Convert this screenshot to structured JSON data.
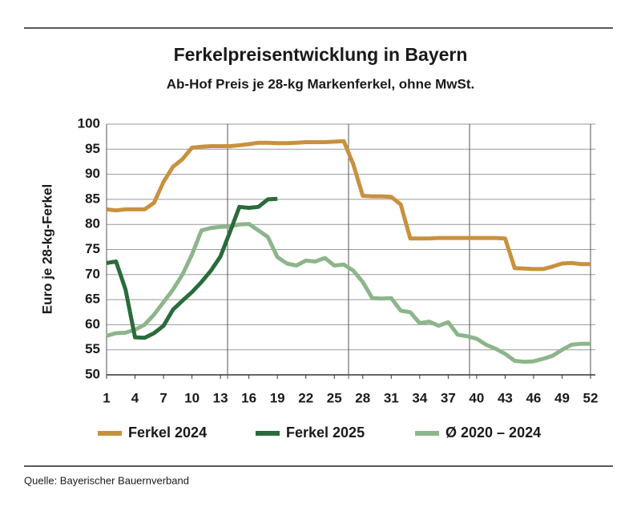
{
  "chart_data": {
    "type": "line",
    "title": "Ferkelpreisentwicklung in Bayern",
    "subtitle": "Ab-Hof Preis je 28-kg Markenferkel, ohne MwSt.",
    "y_label": "Euro je 28-kg-Ferkel",
    "source": "Quelle: Bayerischer Bauernverband",
    "x": [
      1,
      2,
      3,
      4,
      5,
      6,
      7,
      8,
      9,
      10,
      11,
      12,
      13,
      14,
      15,
      16,
      17,
      18,
      19,
      20,
      21,
      22,
      23,
      24,
      25,
      26,
      27,
      28,
      29,
      30,
      31,
      32,
      33,
      34,
      35,
      36,
      37,
      38,
      39,
      40,
      41,
      42,
      43,
      44,
      45,
      46,
      47,
      48,
      49,
      50,
      51,
      52
    ],
    "xlim": [
      1,
      52
    ],
    "xticks": [
      1,
      4,
      7,
      10,
      13,
      16,
      19,
      22,
      25,
      28,
      31,
      34,
      37,
      40,
      43,
      46,
      49,
      52
    ],
    "x_gridlines": [
      1,
      13.75,
      26.5,
      39.25,
      52
    ],
    "ylim": [
      50,
      100
    ],
    "yticks": [
      50,
      55,
      60,
      65,
      70,
      75,
      80,
      85,
      90,
      95,
      100
    ],
    "grid": true,
    "legend": "bottom",
    "series": [
      {
        "name": "Ferkel 2024",
        "color": "#c8913f",
        "values": [
          83,
          82.8,
          83,
          83,
          83,
          84.3,
          88.5,
          91.5,
          93,
          95.3,
          95.5,
          95.6,
          95.6,
          95.6,
          95.8,
          96,
          96.3,
          96.3,
          96.2,
          96.2,
          96.3,
          96.4,
          96.4,
          96.4,
          96.5,
          96.6,
          92,
          85.7,
          85.6,
          85.6,
          85.5,
          84,
          77.2,
          77.2,
          77.2,
          77.3,
          77.3,
          77.3,
          77.3,
          77.3,
          77.3,
          77.3,
          77.2,
          71.3,
          71.2,
          71.1,
          71.1,
          71.6,
          72.2,
          72.3,
          72.1,
          72.1
        ]
      },
      {
        "name": "Ferkel 2025",
        "color": "#2a6b3c",
        "values": [
          72.3,
          72.6,
          67,
          57.5,
          57.4,
          58.3,
          59.8,
          63,
          64.8,
          66.5,
          68.5,
          70.8,
          73.6,
          78.5,
          83.5,
          83.3,
          83.5,
          85,
          85.1,
          null,
          null,
          null,
          null,
          null,
          null,
          null,
          null,
          null,
          null,
          null,
          null,
          null,
          null,
          null,
          null,
          null,
          null,
          null,
          null,
          null,
          null,
          null,
          null,
          null,
          null,
          null,
          null,
          null,
          null,
          null,
          null,
          null
        ]
      },
      {
        "name": "Ø 2020 – 2024",
        "color": "#8db58b",
        "values": [
          57.8,
          58.3,
          58.4,
          59,
          60,
          62,
          64.5,
          67,
          70,
          74,
          78.8,
          79.3,
          79.5,
          79.6,
          80,
          80.1,
          78.8,
          77.5,
          73.5,
          72.2,
          71.8,
          72.8,
          72.6,
          73.3,
          71.8,
          72,
          70.8,
          68.5,
          65.3,
          65.2,
          65.3,
          62.8,
          62.5,
          60.3,
          60.6,
          59.8,
          60.5,
          58,
          57.7,
          57.2,
          56,
          55.2,
          54.2,
          52.8,
          52.6,
          52.7,
          53.2,
          53.8,
          55,
          56,
          56.2,
          56.2
        ]
      }
    ]
  }
}
